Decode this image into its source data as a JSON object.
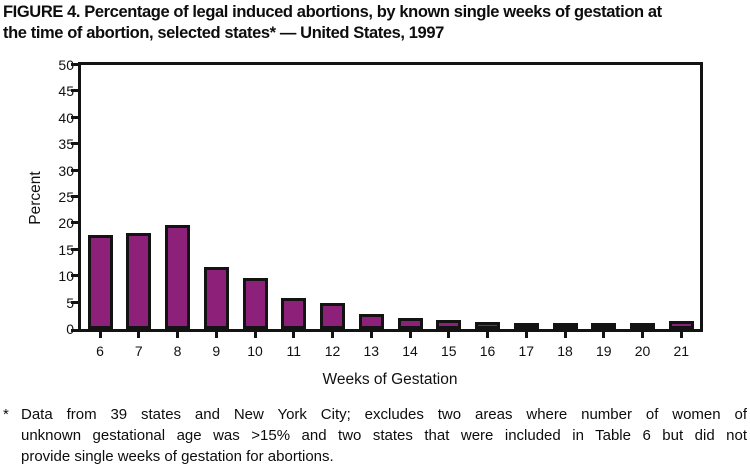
{
  "title": {
    "line1": "FIGURE 4. Percentage of legal induced abortions, by known single weeks of gestation at",
    "line2": "the time of abortion, selected states* — United States, 1997"
  },
  "chart_data": {
    "type": "bar",
    "title": "FIGURE 4. Percentage of legal induced abortions, by known single weeks of gestation at the time of abortion, selected states* — United States, 1997",
    "categories": [
      "6",
      "7",
      "8",
      "9",
      "10",
      "11",
      "12",
      "13",
      "14",
      "15",
      "16",
      "17",
      "18",
      "19",
      "20",
      "21"
    ],
    "values": [
      17.8,
      18.1,
      19.7,
      11.8,
      9.7,
      5.9,
      4.9,
      2.9,
      2.1,
      1.7,
      1.4,
      1.1,
      1.0,
      0.8,
      0.7,
      1.6
    ],
    "xlabel": "Weeks of Gestation",
    "ylabel": "Percent",
    "ylim": [
      0,
      50
    ],
    "yticks": [
      0,
      5,
      10,
      15,
      20,
      25,
      30,
      35,
      40,
      45,
      50
    ],
    "grid": false,
    "legend": "none",
    "bar_color": "#8d2179",
    "bar_border_color": "#131313",
    "axis_color": "#131313"
  },
  "footnote": {
    "marker": "*",
    "lines": [
      "Data from 39 states and New York City; excludes two areas where number of women of",
      "unknown gestational age was >15% and two states that were included in Table 6 but did not",
      "provide single weeks of gestation for abortions."
    ]
  }
}
